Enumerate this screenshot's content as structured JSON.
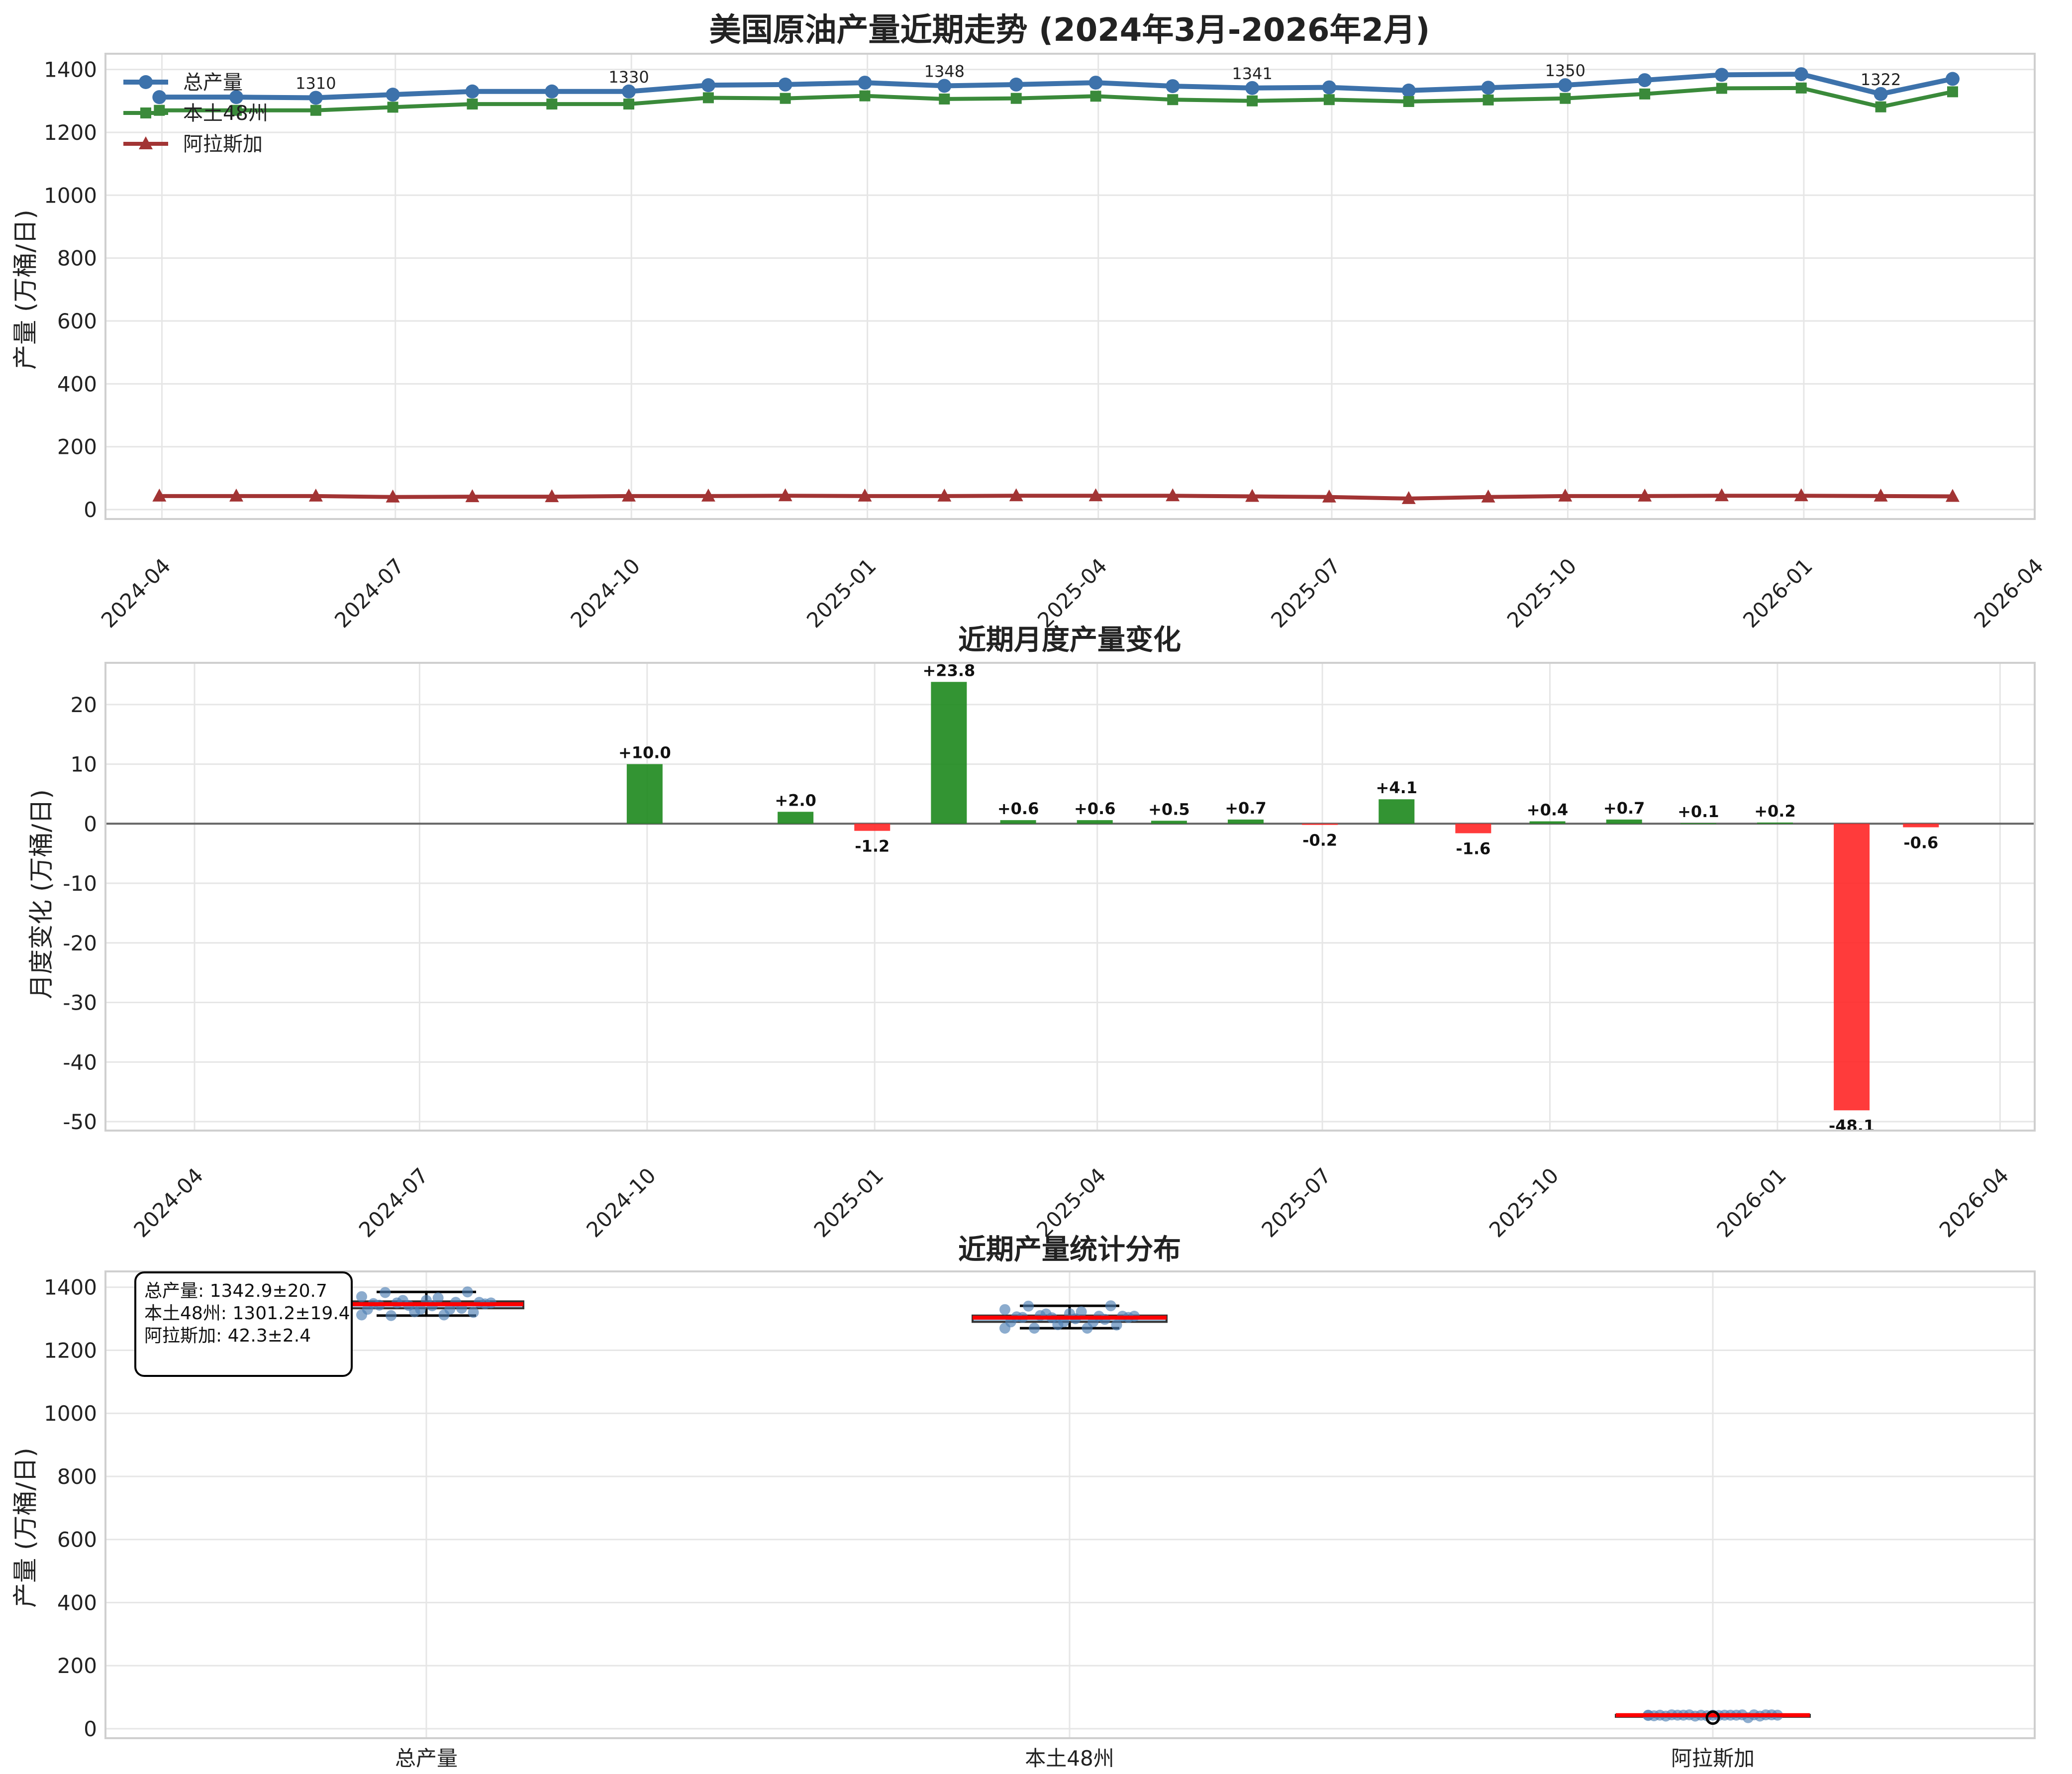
{
  "chart_data": [
    {
      "type": "line",
      "title": "美国原油产量近期走势 (2024年3月-2026年2月)",
      "xlabel": "",
      "ylabel": "产量 (万桶/日)",
      "ylim": [
        -30,
        1450
      ],
      "xlim": [
        "2024-03-10",
        "2026-04-01"
      ],
      "x_tick_labels": [
        "2024-04",
        "2024-07",
        "2024-10",
        "2025-01",
        "2025-04",
        "2025-07",
        "2025-10",
        "2026-01",
        "2026-04"
      ],
      "y_ticks": [
        0,
        200,
        400,
        600,
        800,
        1000,
        1200,
        1400
      ],
      "x": [
        "2024-03-31",
        "2024-04-30",
        "2024-05-31",
        "2024-06-30",
        "2024-07-31",
        "2024-08-31",
        "2024-09-30",
        "2024-10-31",
        "2024-11-30",
        "2024-12-31",
        "2025-01-31",
        "2025-02-28",
        "2025-03-31",
        "2025-04-30",
        "2025-05-31",
        "2025-06-30",
        "2025-07-31",
        "2025-08-31",
        "2025-09-30",
        "2025-10-31",
        "2025-11-30",
        "2025-12-31",
        "2026-01-31",
        "2026-02-28"
      ],
      "series": [
        {
          "name": "总产量",
          "color": "#3d72ab",
          "marker": "circle",
          "values": [
            1312,
            1312,
            1310,
            1320,
            1330,
            1330,
            1330,
            1350,
            1352,
            1358,
            1348,
            1352,
            1358,
            1347,
            1341,
            1343,
            1333,
            1342,
            1350,
            1366,
            1383,
            1385,
            1322,
            1370
          ]
        },
        {
          "name": "本土48州",
          "color": "#3a8a3a",
          "marker": "square",
          "values": [
            1270,
            1270,
            1270,
            1280,
            1290,
            1290,
            1290,
            1310,
            1308,
            1316,
            1306,
            1308,
            1315,
            1304,
            1300,
            1304,
            1298,
            1303,
            1308,
            1322,
            1340,
            1341,
            1281,
            1329
          ]
        },
        {
          "name": "阿拉斯加",
          "color": "#a23434",
          "marker": "triangle",
          "values": [
            43,
            43,
            43,
            40,
            41,
            41,
            43,
            43,
            44,
            43,
            43,
            44,
            44,
            44,
            42,
            40,
            35,
            40,
            43,
            43,
            44,
            44,
            43,
            42
          ]
        }
      ],
      "annotations": [
        {
          "x": "2024-05-31",
          "y": 1310,
          "text": "1310"
        },
        {
          "x": "2024-09-30",
          "y": 1330,
          "text": "1330"
        },
        {
          "x": "2025-01-31",
          "y": 1348,
          "text": "1348"
        },
        {
          "x": "2025-05-31",
          "y": 1341,
          "text": "1341"
        },
        {
          "x": "2025-09-30",
          "y": 1350,
          "text": "1350"
        },
        {
          "x": "2026-01-31",
          "y": 1322,
          "text": "1322"
        }
      ],
      "legend_position": "top-left",
      "grid": true
    },
    {
      "type": "bar",
      "title": "近期月度产量变化",
      "xlabel": "",
      "ylabel": "月度变化 (万桶/日)",
      "ylim": [
        -51.5,
        27
      ],
      "xlim": [
        "2024-02-25",
        "2026-04-15"
      ],
      "x_tick_labels": [
        "2024-04",
        "2024-07",
        "2024-10",
        "2025-01",
        "2025-04",
        "2025-07",
        "2025-10",
        "2026-01",
        "2026-04"
      ],
      "y_ticks": [
        20,
        10,
        0,
        -10,
        -20,
        -30,
        -40,
        -50
      ],
      "x": [
        "2024-09-30",
        "2024-11-30",
        "2024-12-31",
        "2025-01-31",
        "2025-02-28",
        "2025-03-31",
        "2025-04-30",
        "2025-05-31",
        "2025-06-30",
        "2025-07-31",
        "2025-08-31",
        "2025-09-30",
        "2025-10-31",
        "2025-11-30",
        "2025-12-31",
        "2026-01-31",
        "2026-02-28"
      ],
      "values": [
        10.0,
        2.0,
        -1.2,
        23.8,
        0.6,
        0.6,
        0.5,
        0.7,
        -0.2,
        4.1,
        -1.6,
        0.4,
        0.7,
        0.1,
        0.2,
        -48.1,
        -0.6
      ],
      "labels": [
        "+10.0",
        "+2.0",
        "-1.2",
        "+23.8",
        "+0.6",
        "+0.6",
        "+0.5",
        "+0.7",
        "-0.2",
        "+4.1",
        "-1.6",
        "+0.4",
        "+0.7",
        "+0.1",
        "+0.2",
        "-48.1",
        "-0.6"
      ],
      "positive_color": "#228b22",
      "negative_color": "#ff2a2a",
      "grid": true
    },
    {
      "type": "box",
      "title": "近期产量统计分布",
      "xlabel": "",
      "ylabel": "产量 (万桶/日)",
      "ylim": [
        -30,
        1450
      ],
      "y_ticks": [
        0,
        200,
        400,
        600,
        800,
        1000,
        1200,
        1400
      ],
      "categories": [
        "总产量",
        "本土48州",
        "阿拉斯加"
      ],
      "boxes": [
        {
          "name": "总产量",
          "min": 1310,
          "q1": 1333,
          "median": 1346,
          "q3": 1355,
          "max": 1385
        },
        {
          "name": "本土48州",
          "min": 1270,
          "q1": 1290,
          "median": 1303.5,
          "q3": 1310,
          "max": 1341
        },
        {
          "name": "阿拉斯加",
          "min": 40,
          "q1": 42,
          "median": 43,
          "q3": 44,
          "max": 44,
          "outliers": [
            35
          ]
        }
      ],
      "box_color": "#7aa3cc",
      "median_color": "#ff0000",
      "stats_text": [
        "总产量: 1342.9±20.7",
        "本土48州: 1301.2±19.4",
        "阿拉斯加: 42.3±2.4"
      ],
      "grid": true
    }
  ]
}
